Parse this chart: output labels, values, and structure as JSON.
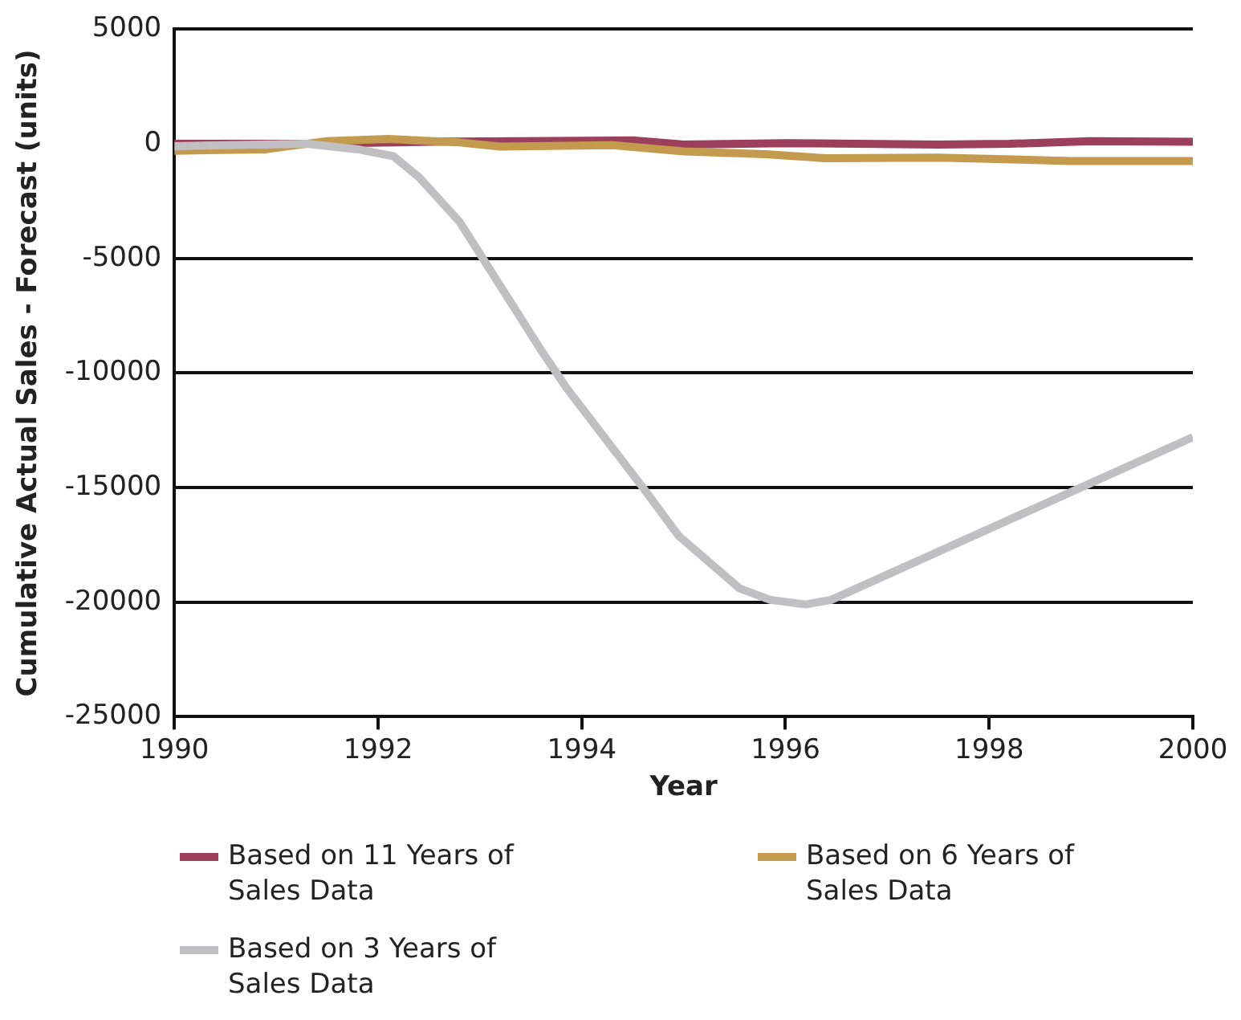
{
  "chart_data": {
    "type": "line",
    "xlabel": "Year",
    "ylabel": "Cumulative Actual Sales - Forecast (units)",
    "xlim": [
      1990,
      2000
    ],
    "xticks": [
      1990,
      1992,
      1994,
      1996,
      1998,
      2000
    ],
    "ylim": [
      -25000,
      5000
    ],
    "yticks": [
      -25000,
      -20000,
      -15000,
      -10000,
      -5000,
      0,
      5000
    ],
    "grid": "y",
    "legend": "bottom",
    "marker": "none",
    "line_style": "solid",
    "series": [
      {
        "name": "Based on 11 Years of Sales Data",
        "color": "#9b3f5c",
        "x": [
          1990,
          1991.3,
          1992.5,
          1994.5,
          1995,
          1996,
          1997.5,
          1998.2,
          1999,
          2000
        ],
        "values": [
          0,
          0,
          90,
          150,
          -30,
          30,
          -30,
          0,
          120,
          90
        ]
      },
      {
        "name": "Based on 6 Years of Sales Data",
        "color": "#c49a4f",
        "x": [
          1990,
          1990.9,
          1991.5,
          1992.1,
          1992.8,
          1993.2,
          1994.3,
          1995,
          1995.8,
          1996.4,
          1997.5,
          1998.8,
          2000
        ],
        "values": [
          -300,
          -240,
          120,
          210,
          60,
          -120,
          -60,
          -330,
          -450,
          -630,
          -600,
          -750,
          -750
        ]
      },
      {
        "name": "Based on 3 Years of Sales Data",
        "color": "#c0c0c2",
        "x": [
          1990,
          1991.3,
          1991.8,
          1992.15,
          1992.4,
          1992.8,
          1993.1,
          1993.6,
          1993.85,
          1994.6,
          1994.95,
          1995.55,
          1995.85,
          1996.2,
          1996.45,
          2000
        ],
        "values": [
          -100,
          0,
          -240,
          -540,
          -1450,
          -3400,
          -5500,
          -9000,
          -10650,
          -15000,
          -17100,
          -19400,
          -19900,
          -20100,
          -19900,
          -12800
        ]
      }
    ]
  }
}
